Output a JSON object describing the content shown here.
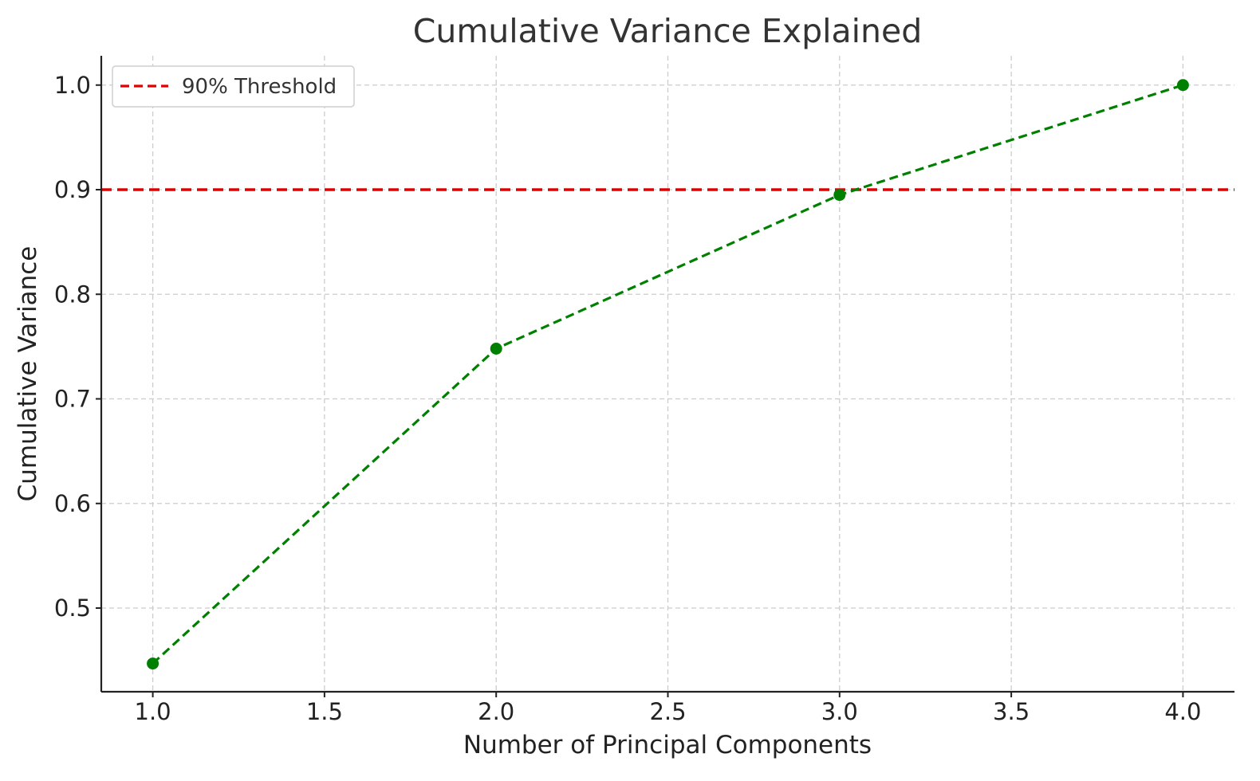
{
  "chart_data": {
    "type": "line",
    "title": "Cumulative Variance Explained",
    "xlabel": "Number of Principal Components",
    "ylabel": "Cumulative Variance",
    "xlim": [
      0.85,
      4.15
    ],
    "ylim": [
      0.42,
      1.028
    ],
    "x_ticks": [
      "1.0",
      "1.5",
      "2.0",
      "2.5",
      "3.0",
      "3.5",
      "4.0"
    ],
    "y_ticks": [
      "0.5",
      "0.6",
      "0.7",
      "0.8",
      "0.9",
      "1.0"
    ],
    "grid": true,
    "legend_position": "top-left",
    "series": [
      {
        "x": [
          1,
          2,
          3,
          4
        ],
        "y": [
          0.447,
          0.748,
          0.895,
          1.0
        ],
        "color": "#008000",
        "line_style": "dashed",
        "marker": "circle"
      }
    ],
    "reference_lines": [
      {
        "name": "90% Threshold",
        "orientation": "horizontal",
        "y": 0.9,
        "color": "#e00000",
        "line_style": "dashed"
      }
    ]
  }
}
